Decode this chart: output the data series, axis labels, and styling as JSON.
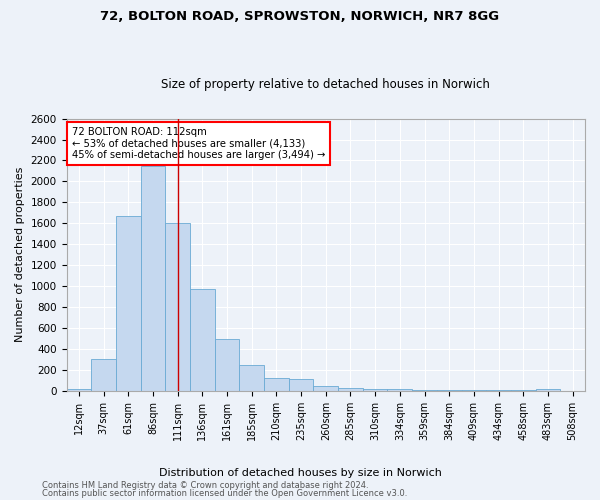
{
  "title1": "72, BOLTON ROAD, SPROWSTON, NORWICH, NR7 8GG",
  "title2": "Size of property relative to detached houses in Norwich",
  "xlabel": "Distribution of detached houses by size in Norwich",
  "ylabel": "Number of detached properties",
  "categories": [
    "12sqm",
    "37sqm",
    "61sqm",
    "86sqm",
    "111sqm",
    "136sqm",
    "161sqm",
    "185sqm",
    "210sqm",
    "235sqm",
    "260sqm",
    "285sqm",
    "310sqm",
    "334sqm",
    "359sqm",
    "384sqm",
    "409sqm",
    "434sqm",
    "458sqm",
    "483sqm",
    "508sqm"
  ],
  "values": [
    18,
    300,
    1670,
    2150,
    1600,
    970,
    500,
    248,
    120,
    110,
    48,
    32,
    20,
    15,
    12,
    8,
    8,
    10,
    5,
    22,
    3
  ],
  "bar_color": "#c5d8ef",
  "bar_edge_color": "#6aaad4",
  "annotation_text": "72 BOLTON ROAD: 112sqm\n← 53% of detached houses are smaller (4,133)\n45% of semi-detached houses are larger (3,494) →",
  "annotation_box_color": "white",
  "annotation_box_edge_color": "red",
  "marker_bin_index": 4,
  "ylim": [
    0,
    2600
  ],
  "yticks": [
    0,
    200,
    400,
    600,
    800,
    1000,
    1200,
    1400,
    1600,
    1800,
    2000,
    2200,
    2400,
    2600
  ],
  "footer1": "Contains HM Land Registry data © Crown copyright and database right 2024.",
  "footer2": "Contains public sector information licensed under the Open Government Licence v3.0.",
  "bg_color": "#edf2f9",
  "grid_color": "white",
  "spine_color": "#aaaaaa"
}
